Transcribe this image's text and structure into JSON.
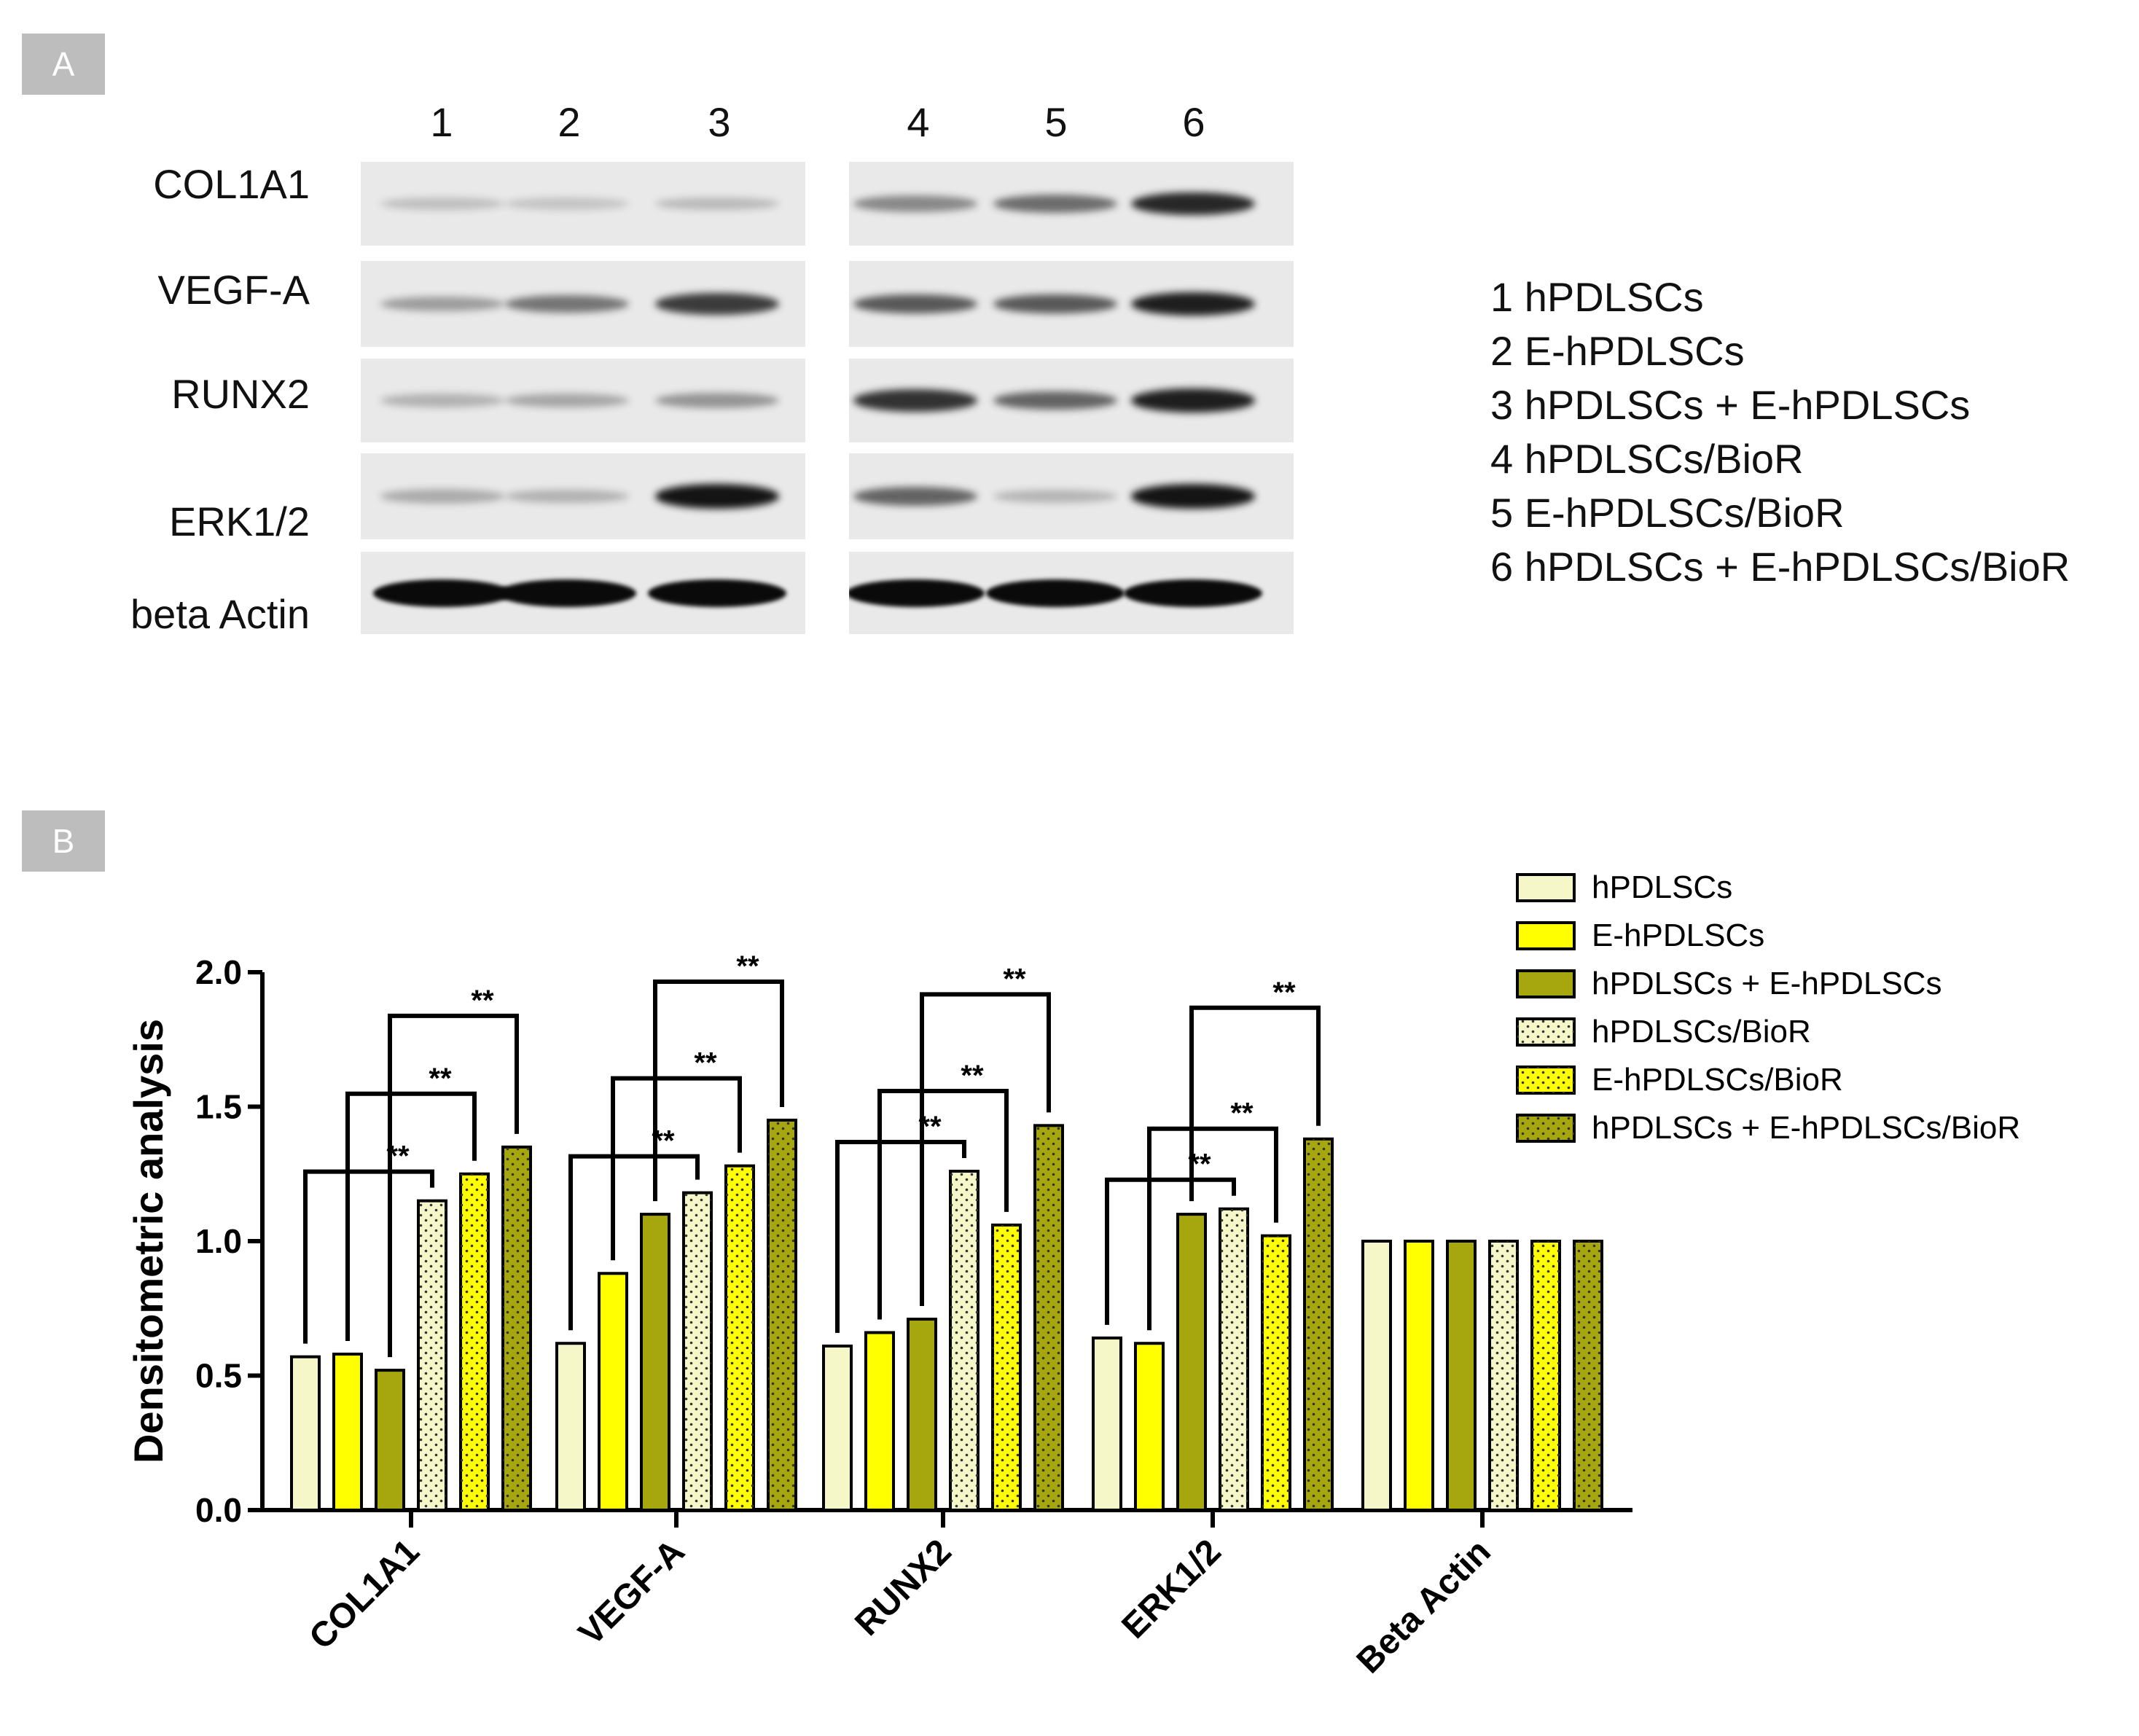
{
  "panel_a": {
    "tag": "A",
    "lane_numbers": [
      "1",
      "2",
      "3",
      "4",
      "5",
      "6"
    ],
    "proteins": [
      "COL1A1",
      "VEGF-A",
      "RUNX2",
      "ERK1/2",
      "beta Actin"
    ],
    "lane_key": [
      "1 hPDLSCs",
      "2 E-hPDLSCs",
      "3 hPDLSCs + E-hPDLSCs",
      "4 hPDLSCs/BioR",
      "5 E-hPDLSCs/BioR",
      "6 hPDLSCs + E-hPDLSCs/BioR"
    ],
    "band_intensity": [
      [
        0.08,
        0.06,
        0.1,
        0.35,
        0.5,
        0.85
      ],
      [
        0.25,
        0.45,
        0.75,
        0.6,
        0.6,
        0.9
      ],
      [
        0.15,
        0.2,
        0.3,
        0.8,
        0.55,
        0.9
      ],
      [
        0.18,
        0.15,
        0.95,
        0.55,
        0.12,
        0.95
      ],
      [
        1.0,
        1.0,
        1.0,
        1.0,
        1.0,
        1.0
      ]
    ]
  },
  "panel_b": {
    "tag": "B"
  },
  "chart_data": {
    "type": "bar",
    "title": "",
    "xlabel": "",
    "ylabel": "Densitometric analysis",
    "ylim": [
      0,
      2.0
    ],
    "yticks": [
      "0.0",
      "0.5",
      "1.0",
      "1.5",
      "2.0"
    ],
    "categories": [
      "COL1A1",
      "VEGF-A",
      "RUNX2",
      "ERK1/2",
      "Beta Actin"
    ],
    "series": [
      {
        "name": "hPDLSCs",
        "values": [
          0.57,
          0.62,
          0.61,
          0.64,
          1.0
        ],
        "color": "#f5f7c8",
        "pattern": "solid"
      },
      {
        "name": "E-hPDLSCs",
        "values": [
          0.58,
          0.88,
          0.66,
          0.62,
          1.0
        ],
        "color": "#ffff00",
        "pattern": "solid"
      },
      {
        "name": "hPDLSCs + E-hPDLSCs",
        "values": [
          0.52,
          1.1,
          0.71,
          1.1,
          1.0
        ],
        "color": "#a6a60e",
        "pattern": "solid"
      },
      {
        "name": "hPDLSCs/BioR",
        "values": [
          1.15,
          1.18,
          1.26,
          1.12,
          1.0
        ],
        "color": "#f5f7c8",
        "pattern": "dots"
      },
      {
        "name": "E-hPDLSCs/BioR",
        "values": [
          1.25,
          1.28,
          1.06,
          1.02,
          1.0
        ],
        "color": "#ffff00",
        "pattern": "dots"
      },
      {
        "name": "hPDLSCs + E-hPDLSCs/BioR",
        "values": [
          1.35,
          1.45,
          1.43,
          1.38,
          1.0
        ],
        "color": "#a6a60e",
        "pattern": "dots"
      }
    ],
    "significance": [
      {
        "category": 0,
        "from": 0,
        "to": 3,
        "label": "**"
      },
      {
        "category": 0,
        "from": 1,
        "to": 4,
        "label": "**"
      },
      {
        "category": 0,
        "from": 2,
        "to": 5,
        "label": "**"
      },
      {
        "category": 1,
        "from": 0,
        "to": 3,
        "label": "**"
      },
      {
        "category": 1,
        "from": 1,
        "to": 4,
        "label": "**"
      },
      {
        "category": 1,
        "from": 2,
        "to": 5,
        "label": "**"
      },
      {
        "category": 2,
        "from": 0,
        "to": 3,
        "label": "**"
      },
      {
        "category": 2,
        "from": 1,
        "to": 4,
        "label": "**"
      },
      {
        "category": 2,
        "from": 2,
        "to": 5,
        "label": "**"
      },
      {
        "category": 3,
        "from": 0,
        "to": 3,
        "label": "**"
      },
      {
        "category": 3,
        "from": 1,
        "to": 4,
        "label": "**"
      },
      {
        "category": 3,
        "from": 2,
        "to": 5,
        "label": "**"
      }
    ],
    "legend_position": "top-right",
    "grid": false
  }
}
